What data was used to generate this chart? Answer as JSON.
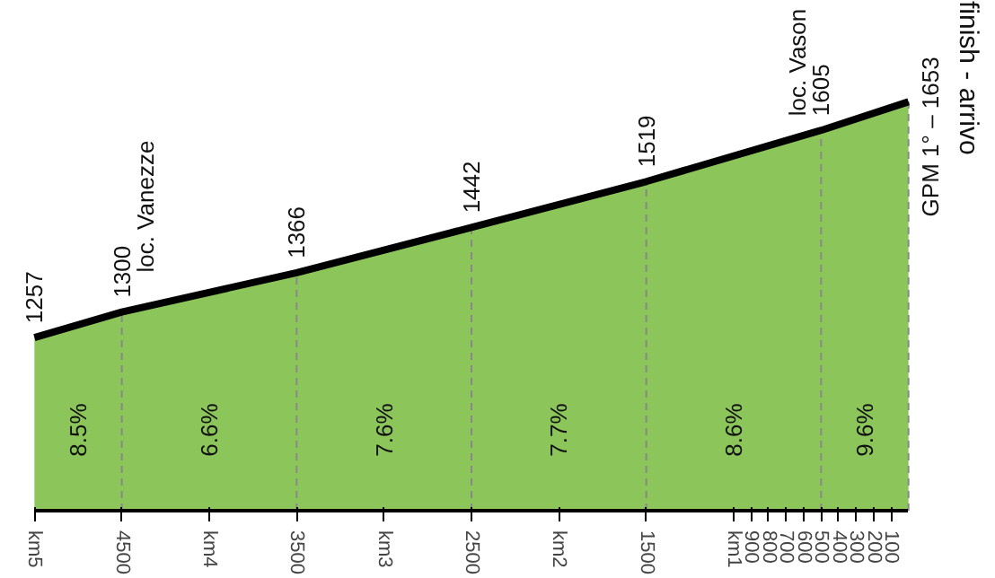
{
  "chart_data": {
    "type": "area",
    "x": [
      5000,
      4500,
      3500,
      2500,
      1500,
      500,
      0
    ],
    "series": [
      {
        "color": "#8cc65a",
        "values": [
          1257,
          1300,
          1366,
          1442,
          1519,
          1605,
          1653
        ],
        "value_labels": [
          "1257",
          "1300",
          "1366",
          "1442",
          "1519",
          "1605",
          "GPM 1° – 1653"
        ]
      }
    ],
    "xlim": [
      5000,
      0
    ],
    "xticks": [
      {
        "value": 5000,
        "label": "km5"
      },
      4500,
      {
        "value": 4000,
        "label": "km4"
      },
      3500,
      {
        "value": 3000,
        "label": "km3"
      },
      2500,
      {
        "value": 2000,
        "label": "km2"
      },
      1500,
      {
        "value": 1000,
        "label": "km1"
      },
      900,
      800,
      700,
      600,
      500,
      400,
      300,
      200,
      100
    ],
    "tick_labels": "x",
    "grid": false,
    "ref_lines": [
      {
        "axis": "x",
        "value": 4500,
        "line_style": "dashed",
        "color": "#888888"
      },
      {
        "axis": "x",
        "value": 3500,
        "line_style": "dashed",
        "color": "#888888"
      },
      {
        "axis": "x",
        "value": 2500,
        "line_style": "dashed",
        "color": "#888888"
      },
      {
        "axis": "x",
        "value": 1500,
        "line_style": "dashed",
        "color": "#888888"
      },
      {
        "axis": "x",
        "value": 500,
        "line_style": "dashed",
        "color": "#888888"
      },
      {
        "axis": "x",
        "value": 0,
        "line_style": "dashed",
        "color": "#888888"
      }
    ],
    "annotations": [
      {
        "text": "loc. Vanezze",
        "x": 4500,
        "y": 1300
      },
      {
        "text": "loc. Vason",
        "x": 500,
        "y": 1605
      },
      "8.5%",
      "6.6%",
      "7.6%",
      "7.7%",
      "8.6%",
      "9.6%",
      "finish - arrivo"
    ]
  }
}
